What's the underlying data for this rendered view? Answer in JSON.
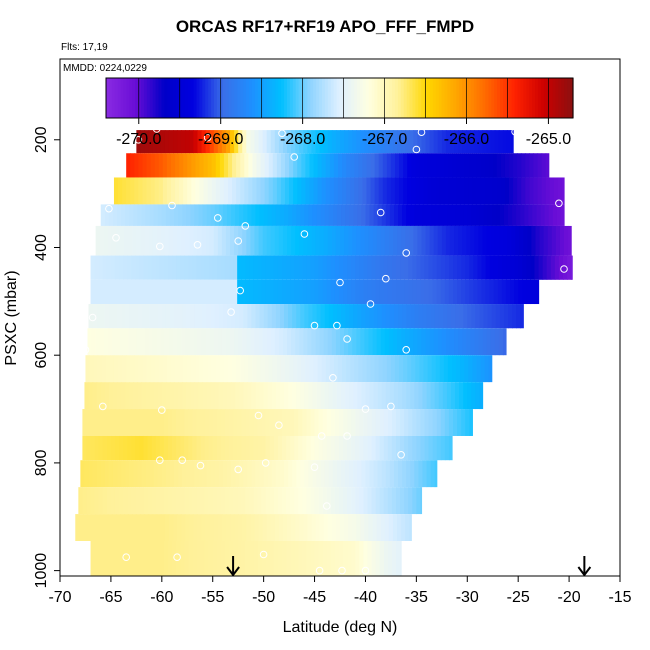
{
  "header": {
    "title": "ORCAS RF17+RF19 APO_FFF_FMPD",
    "flights_label": "Flts: 17,19",
    "date_label": "MMDD: 0224,0229"
  },
  "chart_data": {
    "type": "heatmap",
    "title": "ORCAS RF17+RF19 APO_FFF_FMPD",
    "xlabel": "Latitude (deg N)",
    "ylabel": "PSXC (mbar)",
    "xlim": [
      -70,
      -15
    ],
    "ylim": [
      1010,
      50
    ],
    "y_reversed": true,
    "x_ticks": [
      -70,
      -65,
      -60,
      -55,
      -50,
      -45,
      -40,
      -35,
      -30,
      -25,
      -20,
      -15
    ],
    "y_ticks": [
      200,
      400,
      600,
      800,
      1000
    ],
    "colorbar": {
      "range": [
        -270.4,
        -264.7
      ],
      "ticks": [
        -270.0,
        -269.0,
        -268.0,
        -267.0,
        -266.0,
        -265.0
      ],
      "tick_labels": [
        "-270.0",
        "-269.0",
        "-268.0",
        "-267.0",
        "-266.0",
        "-265.0"
      ],
      "colors": [
        "#8a2be2",
        "#6a0dd6",
        "#0000c8",
        "#0000e0",
        "#3a6ee8",
        "#1e90ff",
        "#00bfff",
        "#8fd4ff",
        "#dff0ff",
        "#ffffe0",
        "#fff19a",
        "#ffd700",
        "#ffa500",
        "#ff6a00",
        "#ff2200",
        "#cc0000",
        "#8b1010"
      ]
    },
    "layers": [
      {
        "p_top": 182,
        "p_bot": 225,
        "lat_min": -62.5,
        "lat_max": -25.5,
        "knots": [
          [
            -62.5,
            -264.8
          ],
          [
            -57,
            -265.0
          ],
          [
            -53.5,
            -266.1
          ],
          [
            -51.5,
            -267.3
          ],
          [
            -48,
            -267.9
          ],
          [
            -43,
            -268.4
          ],
          [
            -38,
            -268.8
          ],
          [
            -32,
            -269.2
          ],
          [
            -25.5,
            -269.3
          ]
        ]
      },
      {
        "p_top": 225,
        "p_bot": 270,
        "lat_min": -63.5,
        "lat_max": -22,
        "knots": [
          [
            -63.5,
            -265.4
          ],
          [
            -60,
            -265.7
          ],
          [
            -55,
            -266.3
          ],
          [
            -51,
            -267.3
          ],
          [
            -47,
            -268.0
          ],
          [
            -42,
            -268.7
          ],
          [
            -35,
            -269.4
          ],
          [
            -29,
            -269.6
          ],
          [
            -25,
            -269.8
          ],
          [
            -22,
            -270.0
          ]
        ]
      },
      {
        "p_top": 270,
        "p_bot": 320,
        "lat_min": -64.7,
        "lat_max": -20.5,
        "knots": [
          [
            -64.7,
            -266.6
          ],
          [
            -60,
            -266.8
          ],
          [
            -55,
            -267.4
          ],
          [
            -49,
            -268.0
          ],
          [
            -44,
            -268.6
          ],
          [
            -38,
            -269.2
          ],
          [
            -33,
            -269.5
          ],
          [
            -27,
            -269.6
          ],
          [
            -24,
            -269.9
          ],
          [
            -20.5,
            -270.1
          ]
        ]
      },
      {
        "p_top": 320,
        "p_bot": 360,
        "lat_min": -66,
        "lat_max": -20.5,
        "knots": [
          [
            -66,
            -267.6
          ],
          [
            -60,
            -267.8
          ],
          [
            -55,
            -268.0
          ],
          [
            -48,
            -268.4
          ],
          [
            -40,
            -269.0
          ],
          [
            -35,
            -269.4
          ],
          [
            -30,
            -269.5
          ],
          [
            -25,
            -269.8
          ],
          [
            -20.5,
            -270.1
          ]
        ]
      },
      {
        "p_top": 360,
        "p_bot": 415,
        "lat_min": -66.5,
        "lat_max": -19.8,
        "knots": [
          [
            -66.5,
            -267.4
          ],
          [
            -60,
            -267.5
          ],
          [
            -55,
            -267.6
          ],
          [
            -50,
            -268.1
          ],
          [
            -44,
            -268.4
          ],
          [
            -38,
            -268.8
          ],
          [
            -32,
            -269.2
          ],
          [
            -26,
            -269.4
          ],
          [
            -23,
            -269.8
          ],
          [
            -19.8,
            -270.1
          ]
        ]
      },
      {
        "p_top": 415,
        "p_bot": 460,
        "lat_min": -67,
        "lat_max": -19.7,
        "knots": [
          [
            -67,
            -267.6
          ],
          [
            -60,
            -267.7
          ],
          [
            -52.6,
            -267.8
          ],
          [
            -52.4,
            -268.3
          ],
          [
            -45,
            -268.5
          ],
          [
            -38,
            -268.9
          ],
          [
            -30,
            -269.2
          ],
          [
            -25,
            -269.5
          ],
          [
            -22,
            -269.9
          ],
          [
            -19.7,
            -270.2
          ]
        ]
      },
      {
        "p_top": 460,
        "p_bot": 505,
        "lat_min": -67,
        "lat_max": -23,
        "knots": [
          [
            -67,
            -267.6
          ],
          [
            -60,
            -267.6
          ],
          [
            -52.6,
            -267.6
          ],
          [
            -52.4,
            -268.3
          ],
          [
            -45,
            -268.5
          ],
          [
            -40,
            -268.8
          ],
          [
            -33,
            -269.0
          ],
          [
            -28,
            -269.2
          ],
          [
            -23,
            -269.4
          ]
        ]
      },
      {
        "p_top": 505,
        "p_bot": 550,
        "lat_min": -67.2,
        "lat_max": -24.5,
        "knots": [
          [
            -67.2,
            -267.4
          ],
          [
            -58,
            -267.5
          ],
          [
            -52,
            -267.6
          ],
          [
            -46,
            -268.1
          ],
          [
            -40,
            -268.5
          ],
          [
            -35,
            -268.8
          ],
          [
            -30,
            -269.0
          ],
          [
            -24.5,
            -269.2
          ]
        ]
      },
      {
        "p_top": 550,
        "p_bot": 600,
        "lat_min": -67.3,
        "lat_max": -26.2,
        "knots": [
          [
            -67.3,
            -267.2
          ],
          [
            -60,
            -267.3
          ],
          [
            -53,
            -267.4
          ],
          [
            -48,
            -267.6
          ],
          [
            -42,
            -268.0
          ],
          [
            -36,
            -268.4
          ],
          [
            -31,
            -268.7
          ],
          [
            -26.2,
            -269.0
          ]
        ]
      },
      {
        "p_top": 600,
        "p_bot": 650,
        "lat_min": -67.5,
        "lat_max": -27.6,
        "knots": [
          [
            -67.5,
            -267.0
          ],
          [
            -60,
            -267.1
          ],
          [
            -53,
            -267.2
          ],
          [
            -48,
            -267.4
          ],
          [
            -42,
            -267.7
          ],
          [
            -36,
            -268.0
          ],
          [
            -31,
            -268.3
          ],
          [
            -27.6,
            -268.6
          ]
        ]
      },
      {
        "p_top": 650,
        "p_bot": 700,
        "lat_min": -67.6,
        "lat_max": -28.5,
        "knots": [
          [
            -67.6,
            -266.8
          ],
          [
            -60,
            -266.9
          ],
          [
            -53,
            -267.0
          ],
          [
            -47,
            -267.2
          ],
          [
            -42,
            -267.5
          ],
          [
            -36,
            -267.8
          ],
          [
            -32,
            -268.1
          ],
          [
            -28.5,
            -268.4
          ]
        ]
      },
      {
        "p_top": 700,
        "p_bot": 750,
        "lat_min": -67.8,
        "lat_max": -29.5,
        "knots": [
          [
            -67.8,
            -266.8
          ],
          [
            -60,
            -266.8
          ],
          [
            -53,
            -266.9
          ],
          [
            -47,
            -267.0
          ],
          [
            -42,
            -267.3
          ],
          [
            -37,
            -267.6
          ],
          [
            -33,
            -267.9
          ],
          [
            -29.5,
            -268.2
          ]
        ]
      },
      {
        "p_top": 750,
        "p_bot": 795,
        "lat_min": -67.8,
        "lat_max": -31.5,
        "knots": [
          [
            -67.8,
            -266.7
          ],
          [
            -62,
            -266.6
          ],
          [
            -56,
            -266.8
          ],
          [
            -50,
            -266.9
          ],
          [
            -45,
            -267.2
          ],
          [
            -40,
            -267.5
          ],
          [
            -35,
            -267.9
          ],
          [
            -31.5,
            -268.1
          ]
        ]
      },
      {
        "p_top": 795,
        "p_bot": 845,
        "lat_min": -68,
        "lat_max": -33,
        "knots": [
          [
            -68,
            -266.7
          ],
          [
            -60,
            -266.8
          ],
          [
            -54,
            -266.9
          ],
          [
            -48,
            -267.1
          ],
          [
            -43,
            -267.4
          ],
          [
            -38,
            -267.7
          ],
          [
            -33,
            -268.1
          ]
        ]
      },
      {
        "p_top": 845,
        "p_bot": 895,
        "lat_min": -68.2,
        "lat_max": -34.5,
        "knots": [
          [
            -68.2,
            -266.8
          ],
          [
            -60,
            -266.9
          ],
          [
            -52,
            -267.0
          ],
          [
            -46,
            -267.2
          ],
          [
            -41,
            -267.5
          ],
          [
            -37,
            -267.8
          ],
          [
            -34.5,
            -268.0
          ]
        ]
      },
      {
        "p_top": 895,
        "p_bot": 945,
        "lat_min": -68.5,
        "lat_max": -35.5,
        "knots": [
          [
            -68.5,
            -266.8
          ],
          [
            -60,
            -266.8
          ],
          [
            -52,
            -266.9
          ],
          [
            -46,
            -267.1
          ],
          [
            -41,
            -267.3
          ],
          [
            -37,
            -267.6
          ],
          [
            -35.5,
            -267.7
          ]
        ]
      },
      {
        "p_top": 945,
        "p_bot": 1010,
        "lat_min": -67,
        "lat_max": -36.5,
        "knots": [
          [
            -67,
            -266.8
          ],
          [
            -60,
            -266.8
          ],
          [
            -52,
            -266.9
          ],
          [
            -46,
            -267.0
          ],
          [
            -41,
            -267.1
          ],
          [
            -38,
            -267.4
          ],
          [
            -36.5,
            -267.5
          ]
        ]
      }
    ],
    "sample_points": [
      [
        -60.5,
        180
      ],
      [
        -62.3,
        200
      ],
      [
        -55.5,
        196
      ],
      [
        -48.2,
        188
      ],
      [
        -34.5,
        186
      ],
      [
        -25.3,
        185
      ],
      [
        -47,
        232
      ],
      [
        -35,
        218
      ],
      [
        -21.5,
        210
      ],
      [
        -65.2,
        328
      ],
      [
        -59,
        322
      ],
      [
        -54.5,
        345
      ],
      [
        -51.8,
        360
      ],
      [
        -38.5,
        335
      ],
      [
        -21,
        318
      ],
      [
        -64.5,
        382
      ],
      [
        -60.2,
        398
      ],
      [
        -56.5,
        395
      ],
      [
        -52.5,
        388
      ],
      [
        -46,
        375
      ],
      [
        -36,
        410
      ],
      [
        -67.5,
        440
      ],
      [
        -52.3,
        480
      ],
      [
        -42.5,
        465
      ],
      [
        -38,
        458
      ],
      [
        -20.5,
        440
      ],
      [
        -66.8,
        530
      ],
      [
        -53.2,
        520
      ],
      [
        -39.5,
        505
      ],
      [
        -45,
        545
      ],
      [
        -42.8,
        545
      ],
      [
        -41.8,
        570
      ],
      [
        -67.5,
        590
      ],
      [
        -36,
        590
      ],
      [
        -43.2,
        642
      ],
      [
        -65.8,
        695
      ],
      [
        -60,
        702
      ],
      [
        -50.5,
        712
      ],
      [
        -48.5,
        730
      ],
      [
        -40,
        700
      ],
      [
        -37.5,
        695
      ],
      [
        -44.3,
        750
      ],
      [
        -41.8,
        750
      ],
      [
        -36.5,
        785
      ],
      [
        -60.2,
        795
      ],
      [
        -58,
        795
      ],
      [
        -56.2,
        805
      ],
      [
        -52.5,
        812
      ],
      [
        -49.8,
        800
      ],
      [
        -45,
        808
      ],
      [
        -43.8,
        880
      ],
      [
        -63.5,
        975
      ],
      [
        -58.5,
        975
      ],
      [
        -50,
        970
      ],
      [
        -42.3,
        1000
      ],
      [
        -44.5,
        1000
      ],
      [
        -40,
        1000
      ]
    ],
    "flight_markers": [
      -53,
      -18.5
    ]
  }
}
